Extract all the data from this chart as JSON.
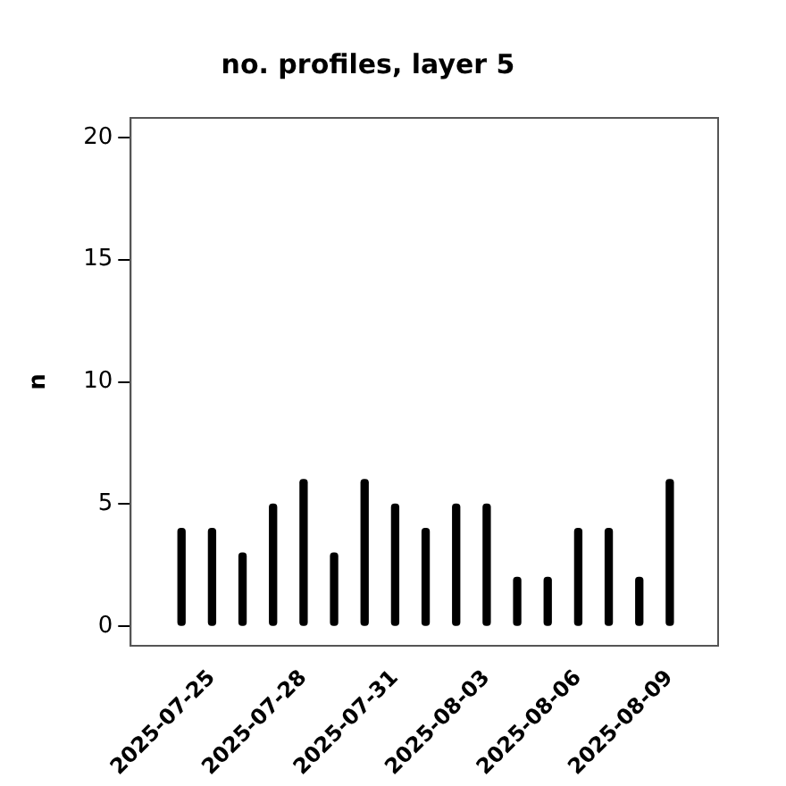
{
  "chart_data": {
    "type": "bar",
    "title": "no. profiles, layer 5",
    "ylabel": "n",
    "x": [
      "2025-07-24",
      "2025-07-25",
      "2025-07-26",
      "2025-07-27",
      "2025-07-28",
      "2025-07-29",
      "2025-07-30",
      "2025-07-31",
      "2025-08-01",
      "2025-08-02",
      "2025-08-03",
      "2025-08-04",
      "2025-08-05",
      "2025-08-06",
      "2025-08-07",
      "2025-08-08",
      "2025-08-09"
    ],
    "values": [
      4,
      4,
      3,
      5,
      6,
      3,
      6,
      5,
      4,
      5,
      5,
      2,
      2,
      4,
      4,
      2,
      6
    ],
    "color": "#000000",
    "xlim": [
      "2025-07-22T08:00",
      "2025-08-10T14:00"
    ],
    "xticks": [
      "2025-07-25",
      "2025-07-28",
      "2025-07-31",
      "2025-08-03",
      "2025-08-06",
      "2025-08-09"
    ],
    "ylim": [
      -0.8,
      20.8
    ],
    "yticks": [
      0,
      5,
      10,
      15,
      20
    ],
    "grid": false,
    "legend": false
  }
}
